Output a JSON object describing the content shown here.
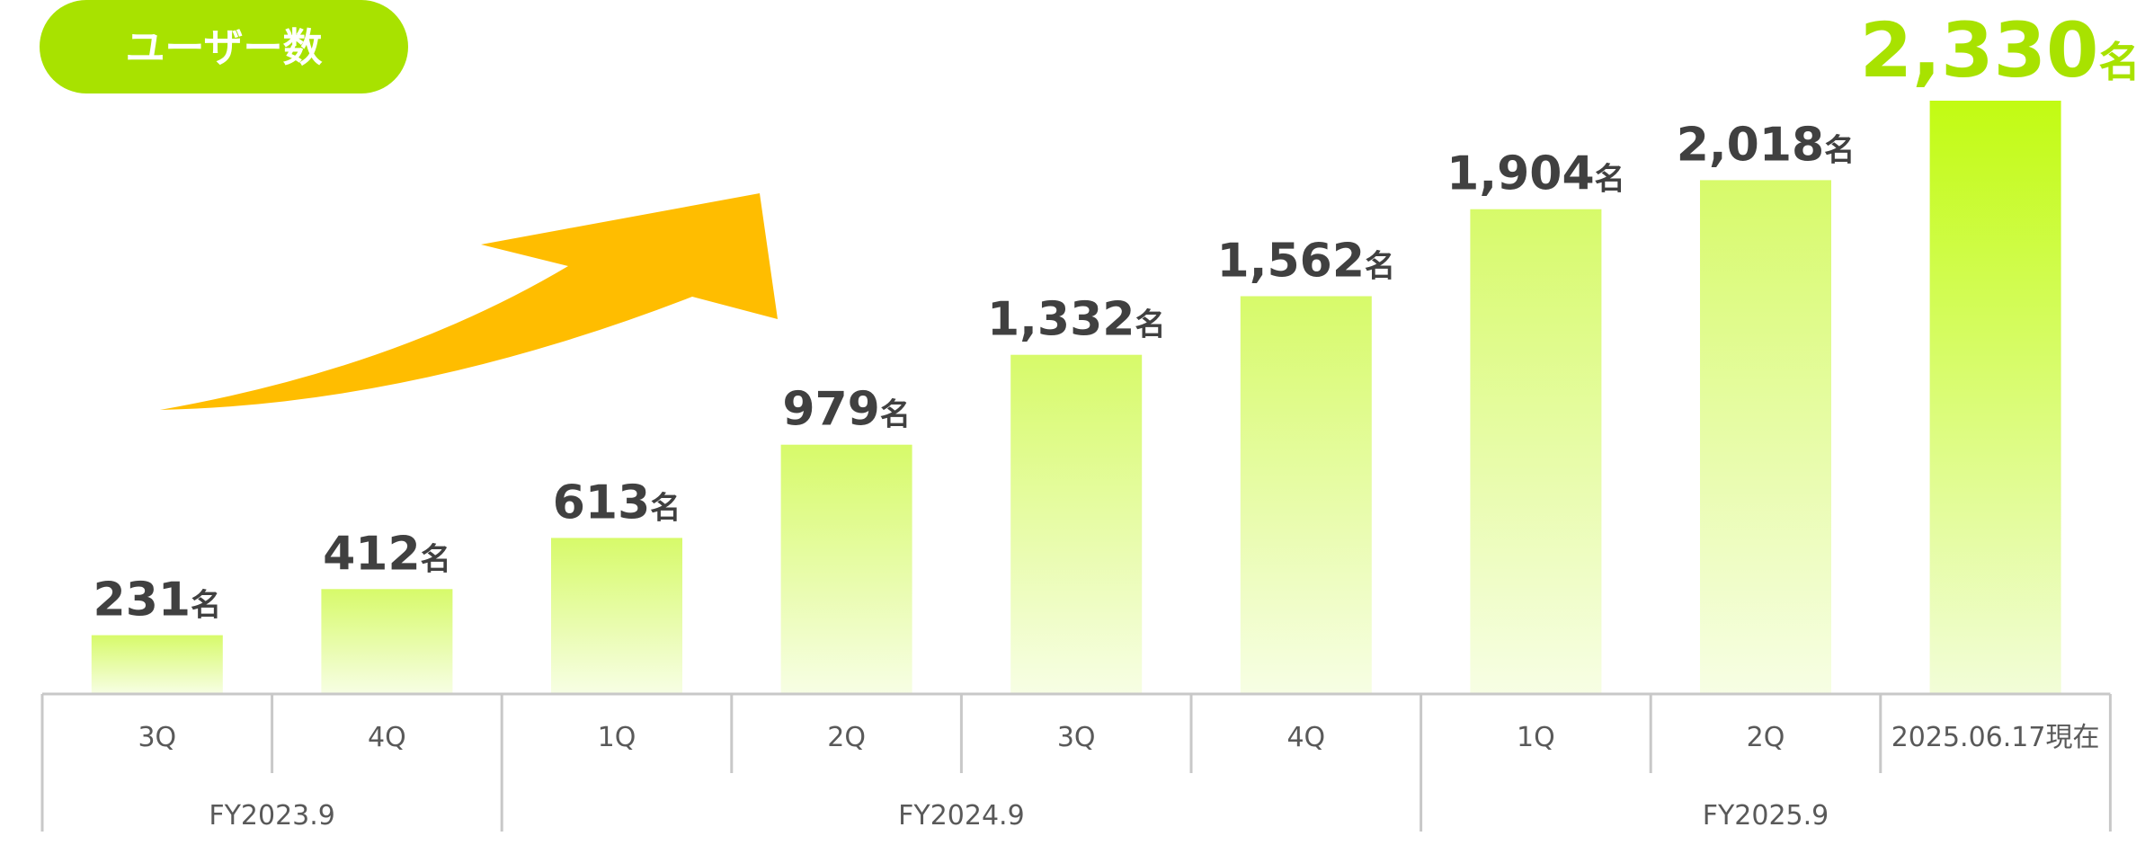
{
  "badge": {
    "label": "ユーザー数"
  },
  "colors": {
    "badge": "#a8e200",
    "bar_top": "#d7fa6a",
    "bar_bottom": "#f7fee4",
    "last_bar_top": "#c2fb12",
    "last_bar_bottom": "#f2fdd8",
    "arrow": "#ffbd00",
    "value_text": "#404040",
    "highlight_text": "#a8e200",
    "axis_text": "#595959",
    "axis_line": "#c8c8c8"
  },
  "chart_data": {
    "type": "bar",
    "unit": "名",
    "categories": [
      "3Q",
      "4Q",
      "1Q",
      "2Q",
      "3Q",
      "4Q",
      "1Q",
      "2Q",
      "2025.06.17現在"
    ],
    "value_labels": [
      "231",
      "412",
      "613",
      "979",
      "1,332",
      "1,562",
      "1,904",
      "2,018",
      "2,330"
    ],
    "values": [
      231,
      412,
      613,
      979,
      1332,
      1562,
      1904,
      2018,
      2330
    ],
    "groups": [
      {
        "label": "FY2023.9",
        "start": 0,
        "end": 1
      },
      {
        "label": "FY2024.9",
        "start": 2,
        "end": 5
      },
      {
        "label": "FY2025.9",
        "start": 6,
        "end": 8
      }
    ],
    "highlight_index": 8,
    "ylim": [
      0,
      2330
    ],
    "grid": false,
    "legend": "none"
  }
}
